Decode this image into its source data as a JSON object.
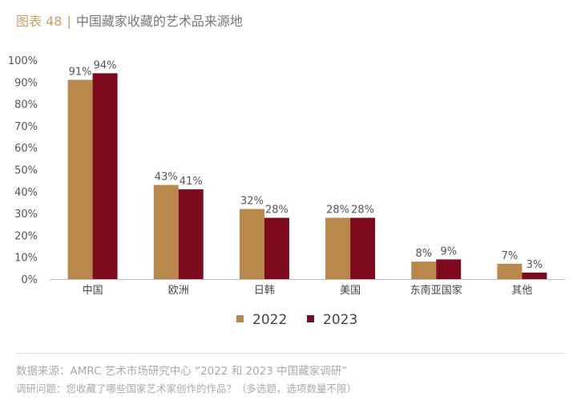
{
  "title": {
    "label": "图表 48",
    "text": "中国藏家收藏的艺术品来源地"
  },
  "chart_data": {
    "type": "bar",
    "categories": [
      "中国",
      "欧洲",
      "日韩",
      "美国",
      "东南亚国家",
      "其他"
    ],
    "series": [
      {
        "name": "2022",
        "color": "#B8894A",
        "values": [
          91,
          43,
          32,
          28,
          8,
          7
        ]
      },
      {
        "name": "2023",
        "color": "#7E0A1E",
        "values": [
          94,
          41,
          28,
          28,
          9,
          3
        ]
      }
    ],
    "ylim": [
      0,
      100
    ],
    "yticks": [
      "0%",
      "10%",
      "20%",
      "30%",
      "40%",
      "50%",
      "60%",
      "70%",
      "80%",
      "90%",
      "100%"
    ],
    "legend": "bottom-center",
    "grid": false
  },
  "footer": {
    "source": "数据来源：AMRC 艺术市场研究中心 “2022 和 2023 中国藏家调研”",
    "question": "调研问题：您收藏了哪些国家艺术家创作的作品？（多选题，选项数量不限）"
  }
}
